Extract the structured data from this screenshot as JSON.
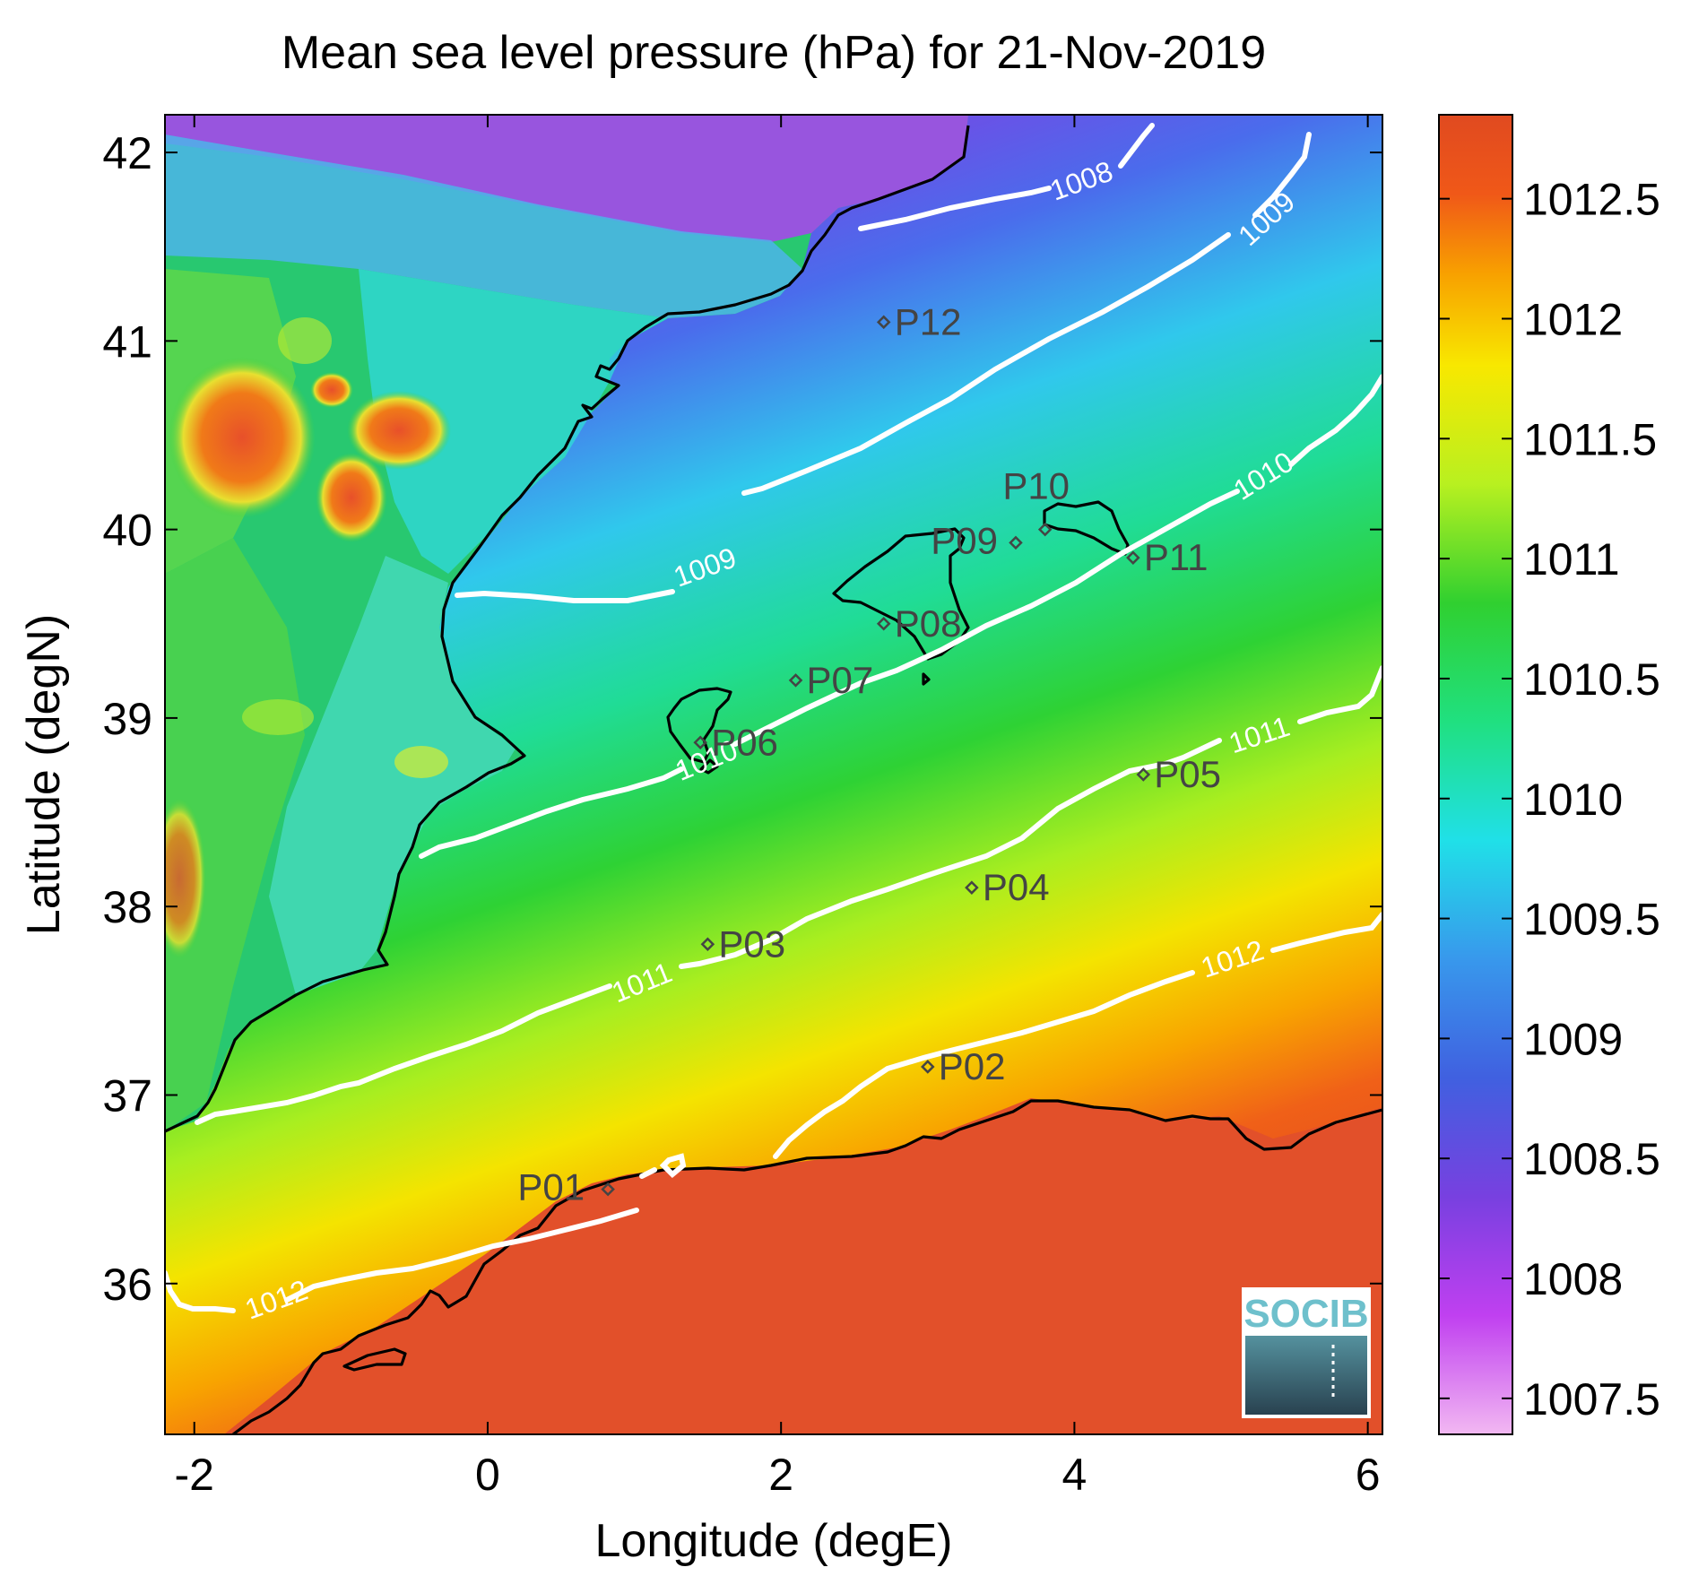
{
  "title": "Mean sea level pressure (hPa) for 21-Nov-2019",
  "x_axis": {
    "label": "Longitude (degE)",
    "range": [
      -2.2,
      6.1
    ],
    "ticks": [
      -2,
      0,
      2,
      4,
      6
    ],
    "tick_labels": [
      "-2",
      "0",
      "2",
      "4",
      "6"
    ]
  },
  "y_axis": {
    "label": "Latitude (degN)",
    "range": [
      35.2,
      42.2
    ],
    "ticks": [
      36,
      37,
      38,
      39,
      40,
      41,
      42
    ],
    "tick_labels": [
      "36",
      "37",
      "38",
      "39",
      "40",
      "41",
      "42"
    ]
  },
  "colorbar": {
    "range": [
      1007.35,
      1012.85
    ],
    "ticks": [
      1007.5,
      1008,
      1008.5,
      1009,
      1009.5,
      1010,
      1010.5,
      1011,
      1011.5,
      1012,
      1012.5
    ],
    "tick_labels": [
      "1007.5",
      "1008",
      "1008.5",
      "1009",
      "1009.5",
      "1010",
      "1010.5",
      "1011",
      "1011.5",
      "1012",
      "1012.5"
    ],
    "colors": [
      "#f2b8f2",
      "#c040f0",
      "#7840e0",
      "#3878e8",
      "#20e0e8",
      "#20e080",
      "#30d030",
      "#b8f020",
      "#f8e800",
      "#f8a000",
      "#f05018",
      "#e04a20"
    ]
  },
  "contour_labels": [
    "1008",
    "1009",
    "1009",
    "1010",
    "1010",
    "1011",
    "1011",
    "1012",
    "1012"
  ],
  "stations": [
    {
      "name": "P01",
      "lon": 0.82,
      "lat": 36.5
    },
    {
      "name": "P02",
      "lon": 3.0,
      "lat": 37.15
    },
    {
      "name": "P03",
      "lon": 1.5,
      "lat": 37.8
    },
    {
      "name": "P04",
      "lon": 3.3,
      "lat": 38.1
    },
    {
      "name": "P05",
      "lon": 4.47,
      "lat": 38.7
    },
    {
      "name": "P06",
      "lon": 1.45,
      "lat": 38.87
    },
    {
      "name": "P07",
      "lon": 2.1,
      "lat": 39.2
    },
    {
      "name": "P08",
      "lon": 2.7,
      "lat": 39.5
    },
    {
      "name": "P09",
      "lon": 3.6,
      "lat": 39.93
    },
    {
      "name": "P10",
      "lon": 3.8,
      "lat": 40.0
    },
    {
      "name": "P11",
      "lon": 4.4,
      "lat": 39.85
    },
    {
      "name": "P12",
      "lon": 2.7,
      "lat": 41.1
    }
  ],
  "logo": {
    "text": "SOCIB"
  },
  "chart_data": {
    "type": "heatmap",
    "title": "Mean sea level pressure (hPa) for 21-Nov-2019",
    "xlabel": "Longitude (degE)",
    "ylabel": "Latitude (degN)",
    "xlim": [
      -2.2,
      6.1
    ],
    "ylim": [
      35.2,
      42.2
    ],
    "colorbar_range": [
      1007.35,
      1012.85
    ],
    "contour_levels": [
      1008,
      1009,
      1010,
      1011,
      1012
    ],
    "grid": false
  }
}
